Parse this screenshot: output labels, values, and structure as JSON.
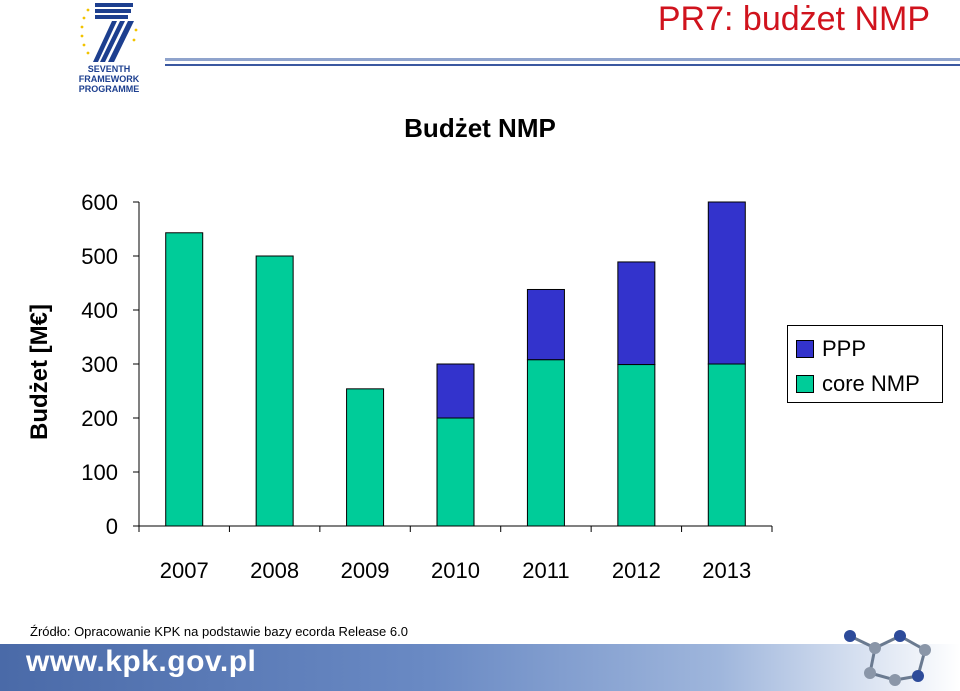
{
  "header": {
    "title": "PR7: budżet NMP",
    "logo_line1": "SEVENTH FRAMEWORK",
    "logo_line2": "PROGRAMME"
  },
  "chart_data": {
    "type": "bar",
    "stacked": true,
    "title": "Budżet NMP",
    "ylabel": "Budżet [M€]",
    "xlabel": "",
    "categories": [
      "2007",
      "2008",
      "2009",
      "2010",
      "2011",
      "2012",
      "2013"
    ],
    "series": [
      {
        "name": "core NMP",
        "color": "#00cc99",
        "values": [
          543,
          500,
          254,
          200,
          308,
          299,
          300
        ]
      },
      {
        "name": "PPP",
        "color": "#3333cc",
        "values": [
          0,
          0,
          0,
          100,
          130,
          190,
          300
        ]
      }
    ],
    "yticks": [
      "0",
      "100",
      "200",
      "300",
      "400",
      "500",
      "600"
    ],
    "ylim": [
      0,
      600
    ],
    "legend_position": "right",
    "grid": false
  },
  "source": "Źródło: Opracowanie KPK na podstawie bazy ecorda Release 6.0",
  "footer": {
    "url": "www.kpk.gov.pl"
  }
}
